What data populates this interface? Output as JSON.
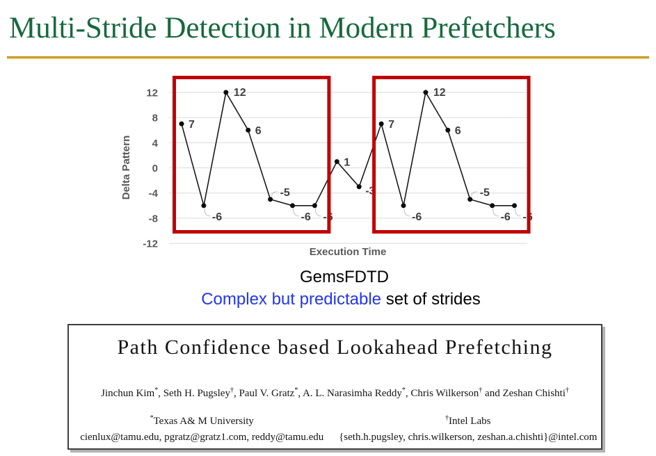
{
  "slide": {
    "title": "Multi-Stride Detection in Modern Prefetchers",
    "colors": {
      "title_green": "#17693E",
      "rule_gold": "#BE9016",
      "highlight_red": "#C00000",
      "caption_blue": "#2135F2",
      "axis_gray": "#595959",
      "grid_gray": "#D9D9D9",
      "line_black": "#1A1A1A"
    }
  },
  "chart_data": {
    "type": "line",
    "title": "",
    "xlabel": "Execution Time",
    "ylabel": "Delta Pattern",
    "x": [
      1,
      2,
      3,
      4,
      5,
      6,
      7,
      8,
      9,
      10,
      11,
      12,
      13,
      14,
      15,
      16
    ],
    "values": [
      7,
      -6,
      12,
      6,
      -5,
      -6,
      -6,
      1,
      -3,
      7,
      -6,
      12,
      6,
      -5,
      -6,
      -6
    ],
    "point_labels": [
      "7",
      "-6",
      "12",
      "6",
      "-5",
      "-6",
      "-6",
      "1",
      "-3",
      "7",
      "-6",
      "12",
      "6",
      "-5",
      "-6",
      "-6"
    ],
    "yticks": [
      12,
      8,
      4,
      0,
      -4,
      -8,
      -12
    ],
    "ylim": [
      -12,
      12
    ],
    "grid": true,
    "legend": false,
    "marker": "filled-circle",
    "highlight_color": "#C00000",
    "highlight_boxes": [
      {
        "start_index": 0,
        "end_index": 6
      },
      {
        "start_index": 9,
        "end_index": 15
      }
    ]
  },
  "caption": {
    "line1": "GemsFDTD",
    "line2_blue": "Complex but predictable",
    "line2_rest": " set of strides"
  },
  "paper": {
    "title": "Path Confidence based Lookahead Prefetching",
    "authors": [
      {
        "name": "Jinchun Kim",
        "sup": "*"
      },
      {
        "name": "Seth H. Pugsley",
        "sup": "†"
      },
      {
        "name": "Paul V. Gratz",
        "sup": "*"
      },
      {
        "name": "A. L. Narasimha Reddy",
        "sup": "*"
      },
      {
        "name": "Chris Wilkerson",
        "sup": "†"
      },
      {
        "name": "Zeshan Chishti",
        "sup": "†"
      }
    ],
    "affiliations": [
      {
        "sup": "*",
        "name": "Texas A& M University",
        "emails": "cienlux@tamu.edu, pgratz@gratz1.com, reddy@tamu.edu"
      },
      {
        "sup": "†",
        "name": "Intel Labs",
        "emails": "{seth.h.pugsley, chris.wilkerson, zeshan.a.chishti}@intel.com"
      }
    ]
  }
}
